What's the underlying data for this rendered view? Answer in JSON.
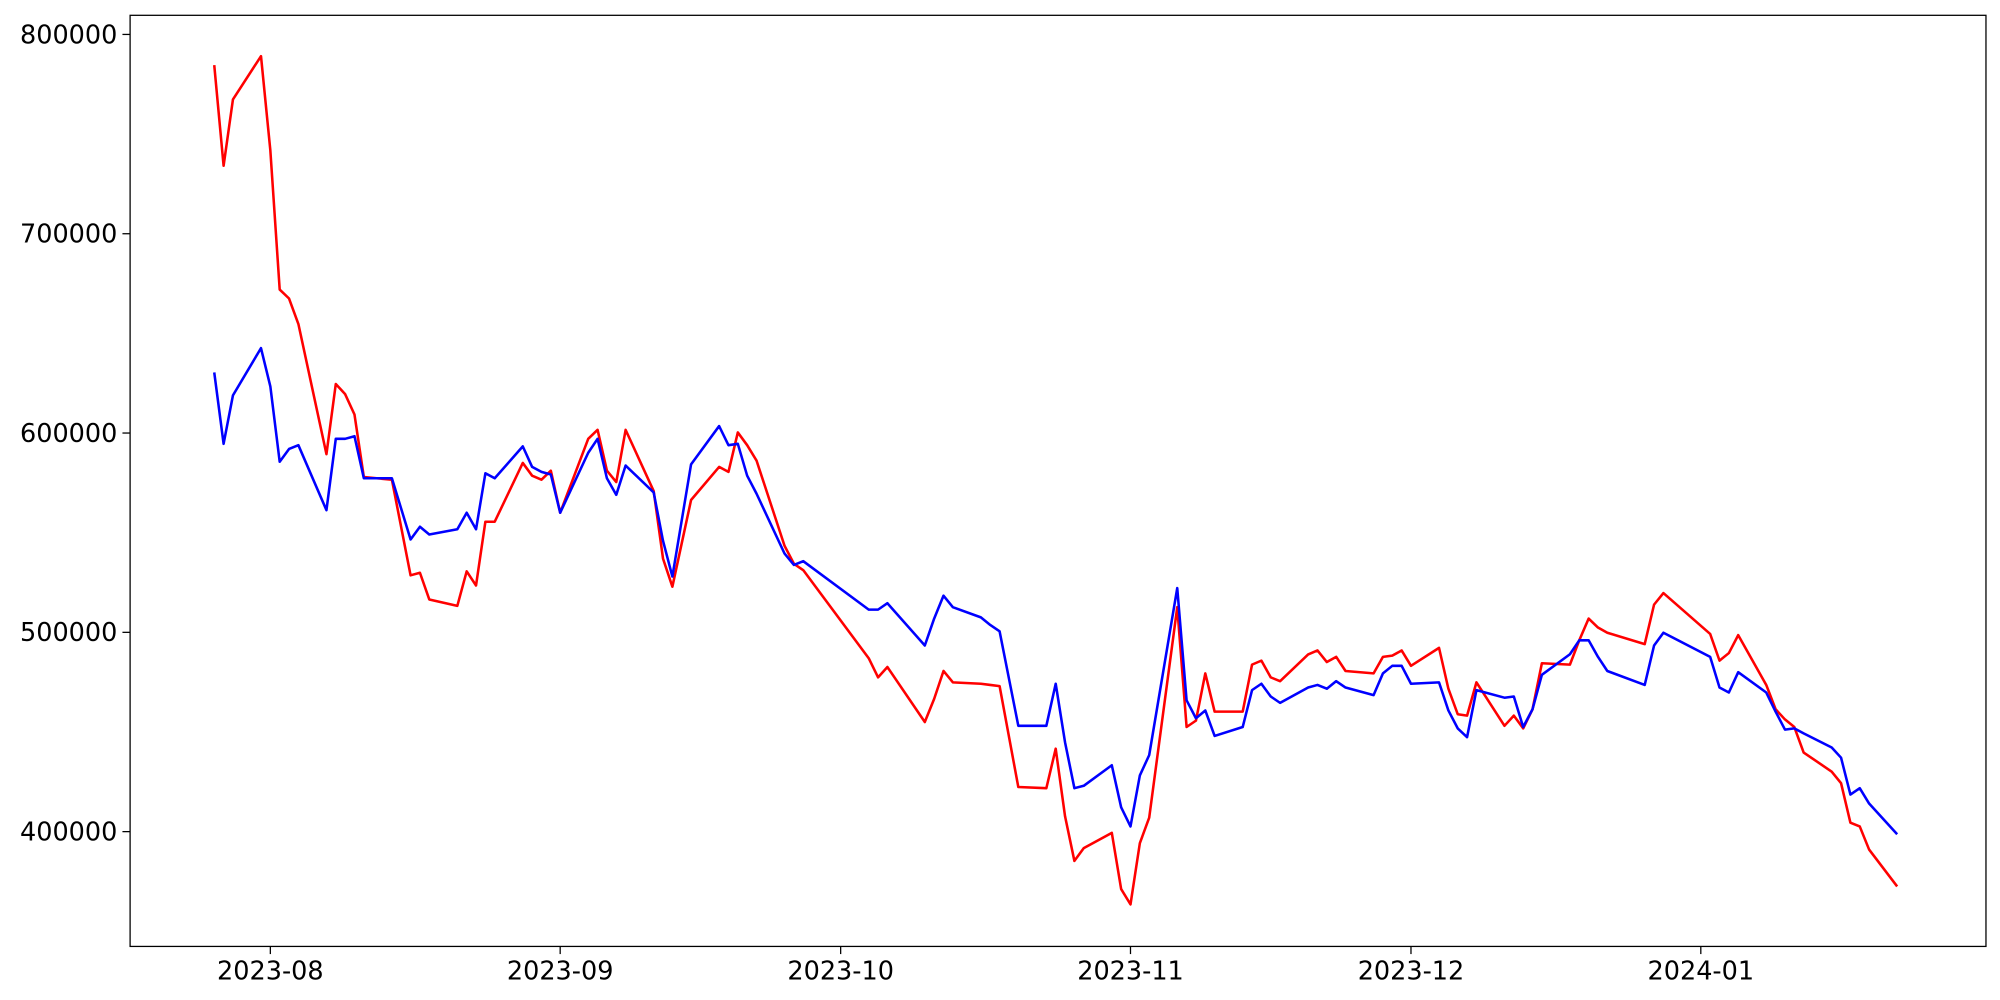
{
  "chart_data": {
    "type": "line",
    "x": [
      19564,
      19565,
      19566,
      19569,
      19570,
      19571,
      19572,
      19573,
      19576,
      19577,
      19578,
      19579,
      19580,
      19583,
      19585,
      19586,
      19587,
      19590,
      19591,
      19592,
      19593,
      19594,
      19597,
      19598,
      19599,
      19600,
      19601,
      19604,
      19605,
      19606,
      19607,
      19608,
      19611,
      19612,
      19613,
      19615,
      19618,
      19619,
      19620,
      19621,
      19622,
      19625,
      19626,
      19627,
      19634,
      19635,
      19636,
      19640,
      19641,
      19642,
      19643,
      19646,
      19647,
      19648,
      19650,
      19653,
      19654,
      19655,
      19656,
      19657,
      19660,
      19661,
      19662,
      19663,
      19664,
      19667,
      19668,
      19669,
      19670,
      19671,
      19674,
      19675,
      19676,
      19677,
      19678,
      19681,
      19682,
      19683,
      19684,
      19685,
      19688,
      19689,
      19690,
      19691,
      19692,
      19695,
      19696,
      19697,
      19698,
      19699,
      19702,
      19703,
      19704,
      19705,
      19706,
      19709,
      19710,
      19711,
      19712,
      19713,
      19717,
      19718,
      19719,
      19724,
      19725,
      19726,
      19727,
      19730,
      19731,
      19732,
      19733,
      19734,
      19737,
      19738,
      19739,
      19740,
      19741,
      19744
    ],
    "series": [
      {
        "color": "#ff0000",
        "values": [
          784600,
          734100,
          767400,
          789100,
          741800,
          672000,
          667500,
          654700,
          589400,
          624600,
          619500,
          609300,
          577900,
          576600,
          528600,
          529900,
          516500,
          513300,
          530600,
          523500,
          555500,
          555500,
          585000,
          578600,
          576600,
          581100,
          560000,
          597100,
          601600,
          581100,
          575400,
          601600,
          570900,
          537000,
          522900,
          566400,
          583000,
          580500,
          600300,
          593900,
          586200,
          543400,
          534400,
          531200,
          487000,
          477400,
          482600,
          455000,
          466600,
          480600,
          474900,
          474200,
          473600,
          473000,
          422400,
          421800,
          441600,
          407700,
          385300,
          391700,
          399400,
          371200,
          363500,
          394200,
          407000,
          512600,
          452500,
          455700,
          479400,
          460200,
          460200,
          483800,
          485800,
          477400,
          475500,
          488900,
          490900,
          485100,
          487700,
          480600,
          479400,
          487700,
          488300,
          490900,
          483200,
          492200,
          471700,
          458900,
          458200,
          474900,
          453100,
          458200,
          451800,
          461400,
          484500,
          483800,
          496000,
          506900,
          502400,
          499800,
          494100,
          513900,
          519700,
          499200,
          485800,
          489600,
          498600,
          473600,
          461400,
          456300,
          452500,
          439700,
          430100,
          424300,
          404500,
          402600,
          391000,
          372500
        ]
      },
      {
        "color": "#0000ff",
        "values": [
          630400,
          594600,
          618900,
          642600,
          623400,
          585600,
          592000,
          593900,
          561300,
          597100,
          597100,
          598400,
          577300,
          577300,
          546600,
          553000,
          549100,
          551700,
          560000,
          551700,
          579800,
          577300,
          593300,
          583000,
          580500,
          579200,
          560000,
          590100,
          597100,
          577300,
          569000,
          583700,
          570200,
          545900,
          528000,
          584300,
          603500,
          593900,
          594600,
          578600,
          569600,
          539500,
          533800,
          535700,
          511400,
          511400,
          514600,
          493400,
          506900,
          518400,
          512600,
          507500,
          503700,
          500500,
          453100,
          453100,
          474200,
          444800,
          421800,
          423000,
          433300,
          412200,
          402600,
          428200,
          438400,
          522200,
          465900,
          456900,
          460800,
          448000,
          452500,
          471000,
          474200,
          467800,
          464600,
          472300,
          473600,
          471700,
          475500,
          472300,
          468500,
          479400,
          483200,
          483200,
          474200,
          474900,
          460800,
          451800,
          447400,
          471000,
          467200,
          467800,
          452500,
          461400,
          478700,
          489000,
          496000,
          496000,
          487700,
          480600,
          473600,
          493400,
          499800,
          487700,
          472300,
          469800,
          480000,
          469800,
          460200,
          451200,
          451800,
          449300,
          442200,
          437100,
          418600,
          421800,
          414100,
          398700
        ]
      }
    ],
    "xlim": [
      19555,
      19753.5
    ],
    "ylim": [
      342400,
      809600
    ],
    "xticks": [
      {
        "value": 19570,
        "label": "2023-08"
      },
      {
        "value": 19601,
        "label": "2023-09"
      },
      {
        "value": 19631,
        "label": "2023-10"
      },
      {
        "value": 19662,
        "label": "2023-11"
      },
      {
        "value": 19692,
        "label": "2023-12"
      },
      {
        "value": 19723,
        "label": "2024-01"
      }
    ],
    "yticks": [
      400000,
      500000,
      600000,
      700000,
      800000
    ],
    "grid": false
  }
}
